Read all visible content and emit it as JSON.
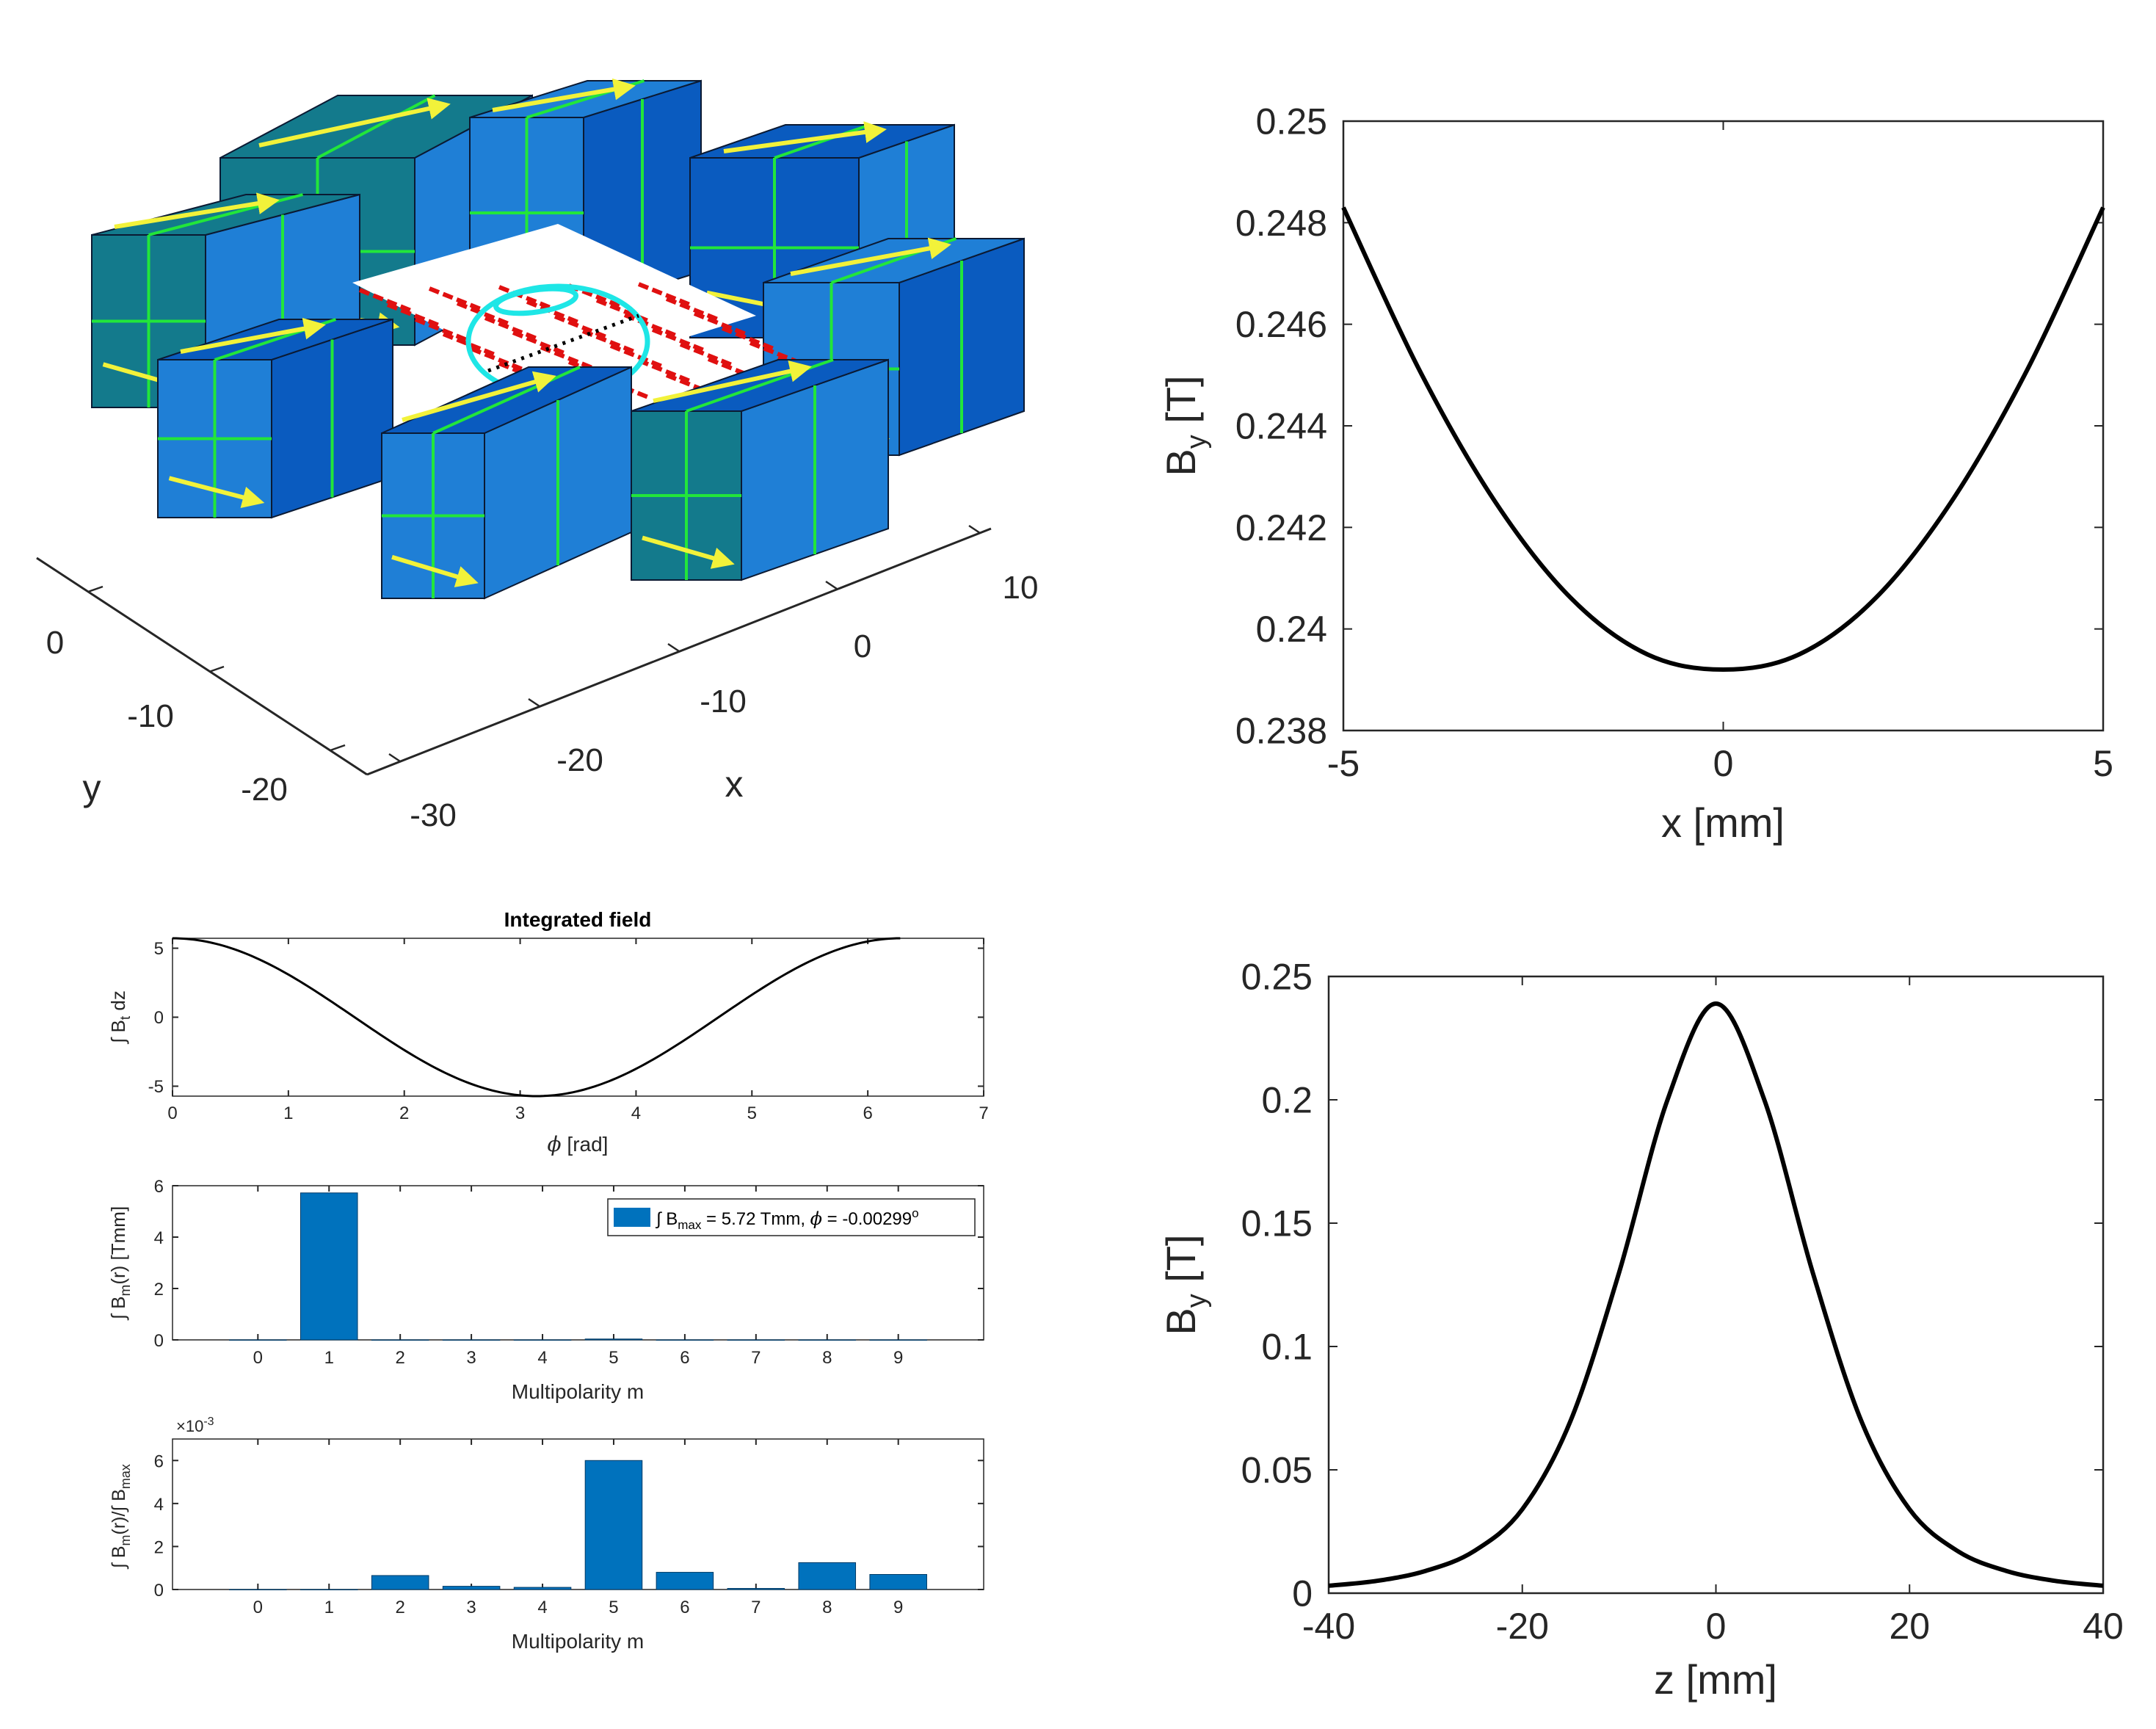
{
  "colors": {
    "axis": "#262626",
    "line": "#000000",
    "bar": "#0072BD",
    "cube_face_a": "#1f7fd6",
    "cube_face_b": "#0a5bbf",
    "cube_face_c": "#137a8c",
    "magnetization": "#f2f23a",
    "edges_green": "#22e63a",
    "field_red": "#e01010",
    "circle_cyan": "#1ee6e6"
  },
  "magnet_view": {
    "x_axis_label": "x",
    "y_axis_label": "y",
    "x_ticks": [
      "-30",
      "-20",
      "-10",
      "0",
      "10"
    ],
    "y_ticks": [
      "-20",
      "-10",
      "0"
    ]
  },
  "chart_data": [
    {
      "id": "by_vs_x",
      "type": "line",
      "title": "",
      "xlabel": "x [mm]",
      "ylabel": "B",
      "ylabel_sub": "y",
      "ylabel_unit": "[T]",
      "xlim": [
        -5,
        5
      ],
      "ylim": [
        0.238,
        0.25
      ],
      "xticks": [
        "-5",
        "0",
        "5"
      ],
      "yticks": [
        "0.238",
        "0.24",
        "0.242",
        "0.244",
        "0.246",
        "0.248",
        "0.25"
      ],
      "x": [
        -5,
        -4,
        -3,
        -2,
        -1,
        0,
        1,
        2,
        3,
        4,
        5
      ],
      "y": [
        0.2483,
        0.2451,
        0.2425,
        0.2406,
        0.2395,
        0.2392,
        0.2395,
        0.2406,
        0.2425,
        0.2451,
        0.2483
      ]
    },
    {
      "id": "by_vs_z",
      "type": "line",
      "title": "",
      "xlabel": "z [mm]",
      "ylabel": "B",
      "ylabel_sub": "y",
      "ylabel_unit": "[T]",
      "xlim": [
        -40,
        40
      ],
      "ylim": [
        0,
        0.25
      ],
      "xticks": [
        "-40",
        "-20",
        "0",
        "20",
        "40"
      ],
      "yticks": [
        "0",
        "0.05",
        "0.1",
        "0.15",
        "0.2",
        "0.25"
      ],
      "x": [
        -40,
        -35,
        -30,
        -25,
        -20,
        -15,
        -10,
        -5,
        0,
        5,
        10,
        15,
        20,
        25,
        30,
        35,
        40
      ],
      "y": [
        0.003,
        0.005,
        0.009,
        0.017,
        0.034,
        0.07,
        0.13,
        0.2,
        0.239,
        0.2,
        0.13,
        0.07,
        0.034,
        0.017,
        0.009,
        0.005,
        0.003
      ]
    },
    {
      "id": "integrated_field",
      "type": "line",
      "title": "Integrated field",
      "xlabel": "[rad]",
      "xlabel_symbol": "ϕ",
      "ylabel": "∫ B",
      "ylabel_sub": "t",
      "ylabel_unit": "dz",
      "xlim": [
        0,
        7
      ],
      "ylim": [
        -5.72,
        5.72
      ],
      "xticks": [
        "0",
        "1",
        "2",
        "3",
        "4",
        "5",
        "6",
        "7"
      ],
      "yticks": [
        "-5",
        "0",
        "5"
      ],
      "amplitude": 5.72,
      "x_end": 6.28
    },
    {
      "id": "multipoles_abs",
      "type": "bar",
      "title": "",
      "xlabel": "Multipolarity m",
      "ylabel": "∫ B",
      "ylabel_sub": "m",
      "ylabel_unit": "(r) [Tmm]",
      "categories": [
        "0",
        "1",
        "2",
        "3",
        "4",
        "5",
        "6",
        "7",
        "8",
        "9"
      ],
      "values": [
        0,
        5.72,
        0,
        0,
        0,
        0.034,
        0,
        0,
        0,
        0
      ],
      "ylim": [
        0,
        6
      ],
      "yticks": [
        "0",
        "2",
        "4",
        "6"
      ],
      "legend": {
        "placement": "top-right",
        "text_pre": "∫ B",
        "text_sub": "max",
        "text_mid": " = 5.72 Tmm,  ",
        "text_phi": "ϕ",
        "text_post": " = -0.00299",
        "text_sup": "o"
      }
    },
    {
      "id": "multipoles_rel",
      "type": "bar",
      "title": "",
      "xlabel": "Multipolarity m",
      "ylabel": "∫ B",
      "ylabel_sub": "m",
      "ylabel_unit": "(r)/∫ B",
      "ylabel_sub2": "max",
      "exponent_label": "×10",
      "exponent_power": "-3",
      "categories": [
        "0",
        "1",
        "2",
        "3",
        "4",
        "5",
        "6",
        "7",
        "8",
        "9"
      ],
      "values": [
        0,
        0,
        0.65,
        0.15,
        0.1,
        6.0,
        0.8,
        0.05,
        1.25,
        0.7
      ],
      "ylim": [
        0,
        7
      ],
      "yticks": [
        "0",
        "2",
        "4",
        "6"
      ]
    }
  ]
}
